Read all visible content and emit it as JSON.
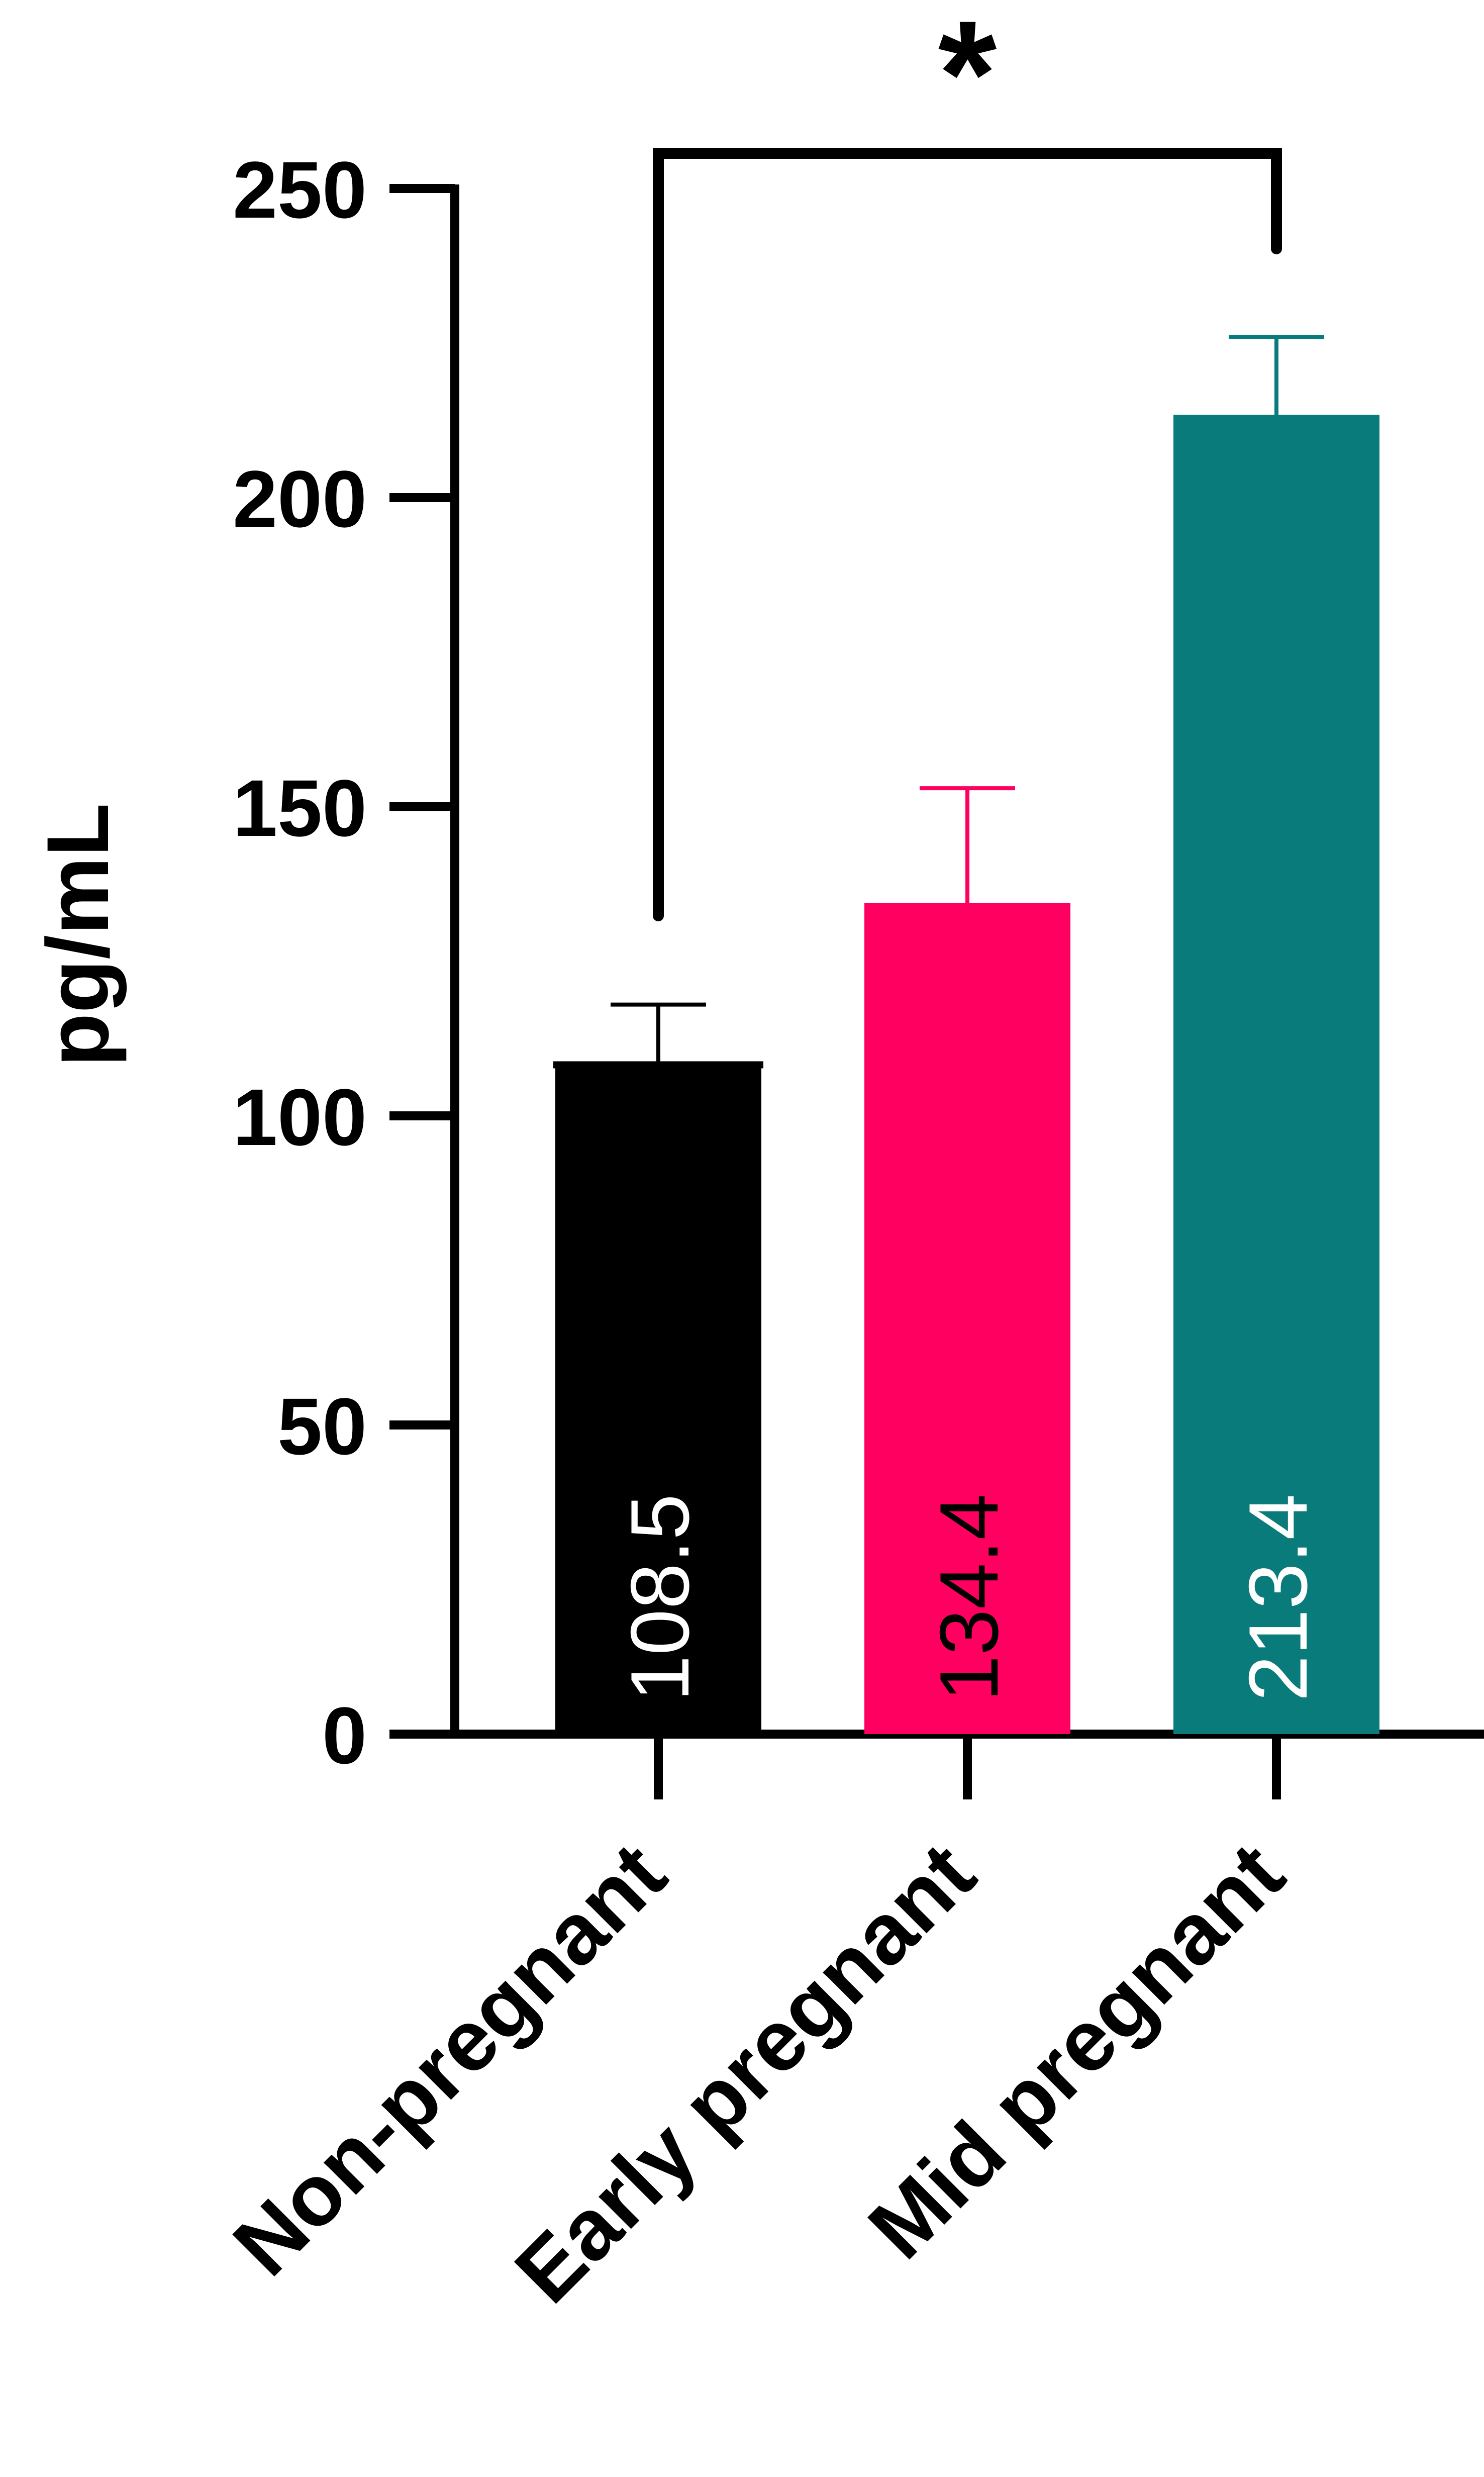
{
  "chart_data": {
    "type": "bar",
    "title": "",
    "xlabel": "",
    "ylabel": "pg/mL",
    "ylim": [
      0,
      250
    ],
    "yticks": [
      0,
      50,
      100,
      150,
      200,
      250
    ],
    "categories": [
      "Non-pregnant",
      "Early pregnant",
      "Mid pregnant"
    ],
    "values": [
      108.5,
      134.4,
      213.4
    ],
    "value_labels": [
      "108.5",
      "134.4",
      "213.4"
    ],
    "error_upper": [
      118,
      153,
      226
    ],
    "colors": [
      "#000000",
      "#ff0060",
      "#0a7b7b"
    ],
    "value_label_colors": [
      "#ffffff",
      "#000000",
      "#ffffff"
    ],
    "grid": false,
    "significance": {
      "between": [
        "Non-pregnant",
        "Mid pregnant"
      ],
      "label": "*"
    }
  }
}
